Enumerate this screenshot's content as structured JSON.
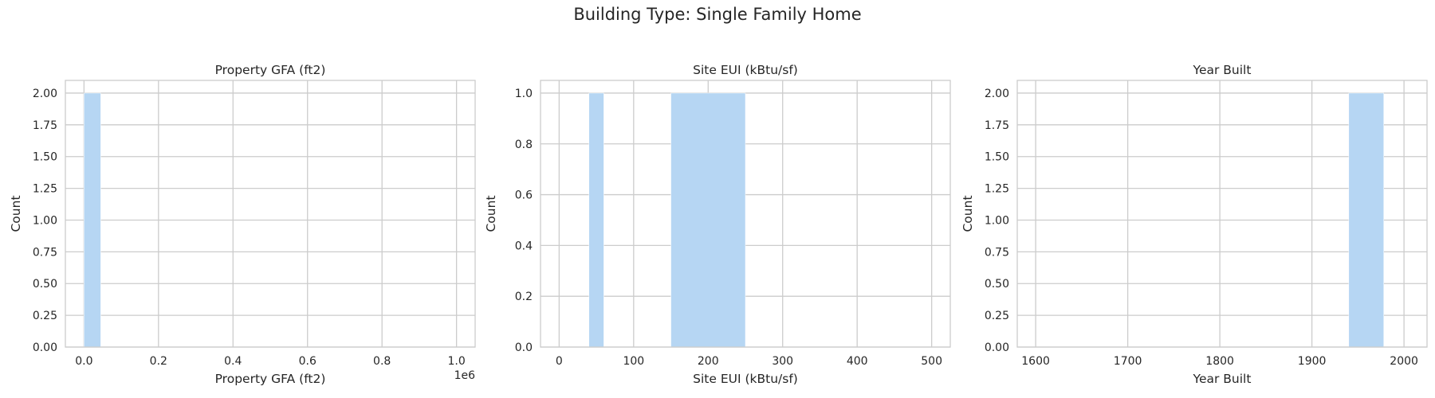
{
  "figure": {
    "title": "Building Type: Single Family Home"
  },
  "colors": {
    "bar": "#b6d6f3",
    "grid": "#cccccc",
    "frame": "#cccccc",
    "text": "#262626"
  },
  "chart_data": [
    {
      "type": "bar",
      "title": "Property GFA (ft2)",
      "xlabel": "Property GFA (ft2)",
      "ylabel": "Count",
      "x_offset_label": "1e6",
      "xlim": [
        -0.05,
        1.05
      ],
      "ylim": [
        0,
        2.1
      ],
      "xticks": [
        0.0,
        0.2,
        0.4,
        0.6,
        0.8,
        1.0
      ],
      "xtick_labels": [
        "0.0",
        "0.2",
        "0.4",
        "0.6",
        "0.8",
        "1.0"
      ],
      "yticks": [
        0,
        0.25,
        0.5,
        0.75,
        1.0,
        1.25,
        1.5,
        1.75,
        2.0
      ],
      "ytick_labels": [
        "0.00",
        "0.25",
        "0.50",
        "0.75",
        "1.00",
        "1.25",
        "1.50",
        "1.75",
        "2.00"
      ],
      "grid": true,
      "bins": [
        {
          "x0": 0.0,
          "x1": 0.045,
          "count": 2
        }
      ]
    },
    {
      "type": "bar",
      "title": "Site EUI (kBtu/sf)",
      "xlabel": "Site EUI (kBtu/sf)",
      "ylabel": "Count",
      "xlim": [
        -25,
        525
      ],
      "ylim": [
        0,
        1.05
      ],
      "xticks": [
        0,
        100,
        200,
        300,
        400,
        500
      ],
      "xtick_labels": [
        "0",
        "100",
        "200",
        "300",
        "400",
        "500"
      ],
      "yticks": [
        0,
        0.2,
        0.4,
        0.6,
        0.8,
        1.0
      ],
      "ytick_labels": [
        "0.0",
        "0.2",
        "0.4",
        "0.6",
        "0.8",
        "1.0"
      ],
      "grid": true,
      "bins": [
        {
          "x0": 40,
          "x1": 60,
          "count": 1
        },
        {
          "x0": 150,
          "x1": 250,
          "count": 1
        }
      ]
    },
    {
      "type": "bar",
      "title": "Year Built",
      "xlabel": "Year Built",
      "ylabel": "Count",
      "xlim": [
        1580,
        2025
      ],
      "ylim": [
        0,
        2.1
      ],
      "xticks": [
        1600,
        1700,
        1800,
        1900,
        2000
      ],
      "xtick_labels": [
        "1600",
        "1700",
        "1800",
        "1900",
        "2000"
      ],
      "yticks": [
        0,
        0.25,
        0.5,
        0.75,
        1.0,
        1.25,
        1.5,
        1.75,
        2.0
      ],
      "ytick_labels": [
        "0.00",
        "0.25",
        "0.50",
        "0.75",
        "1.00",
        "1.25",
        "1.50",
        "1.75",
        "2.00"
      ],
      "grid": true,
      "bins": [
        {
          "x0": 1940,
          "x1": 1978,
          "count": 2
        }
      ]
    }
  ]
}
